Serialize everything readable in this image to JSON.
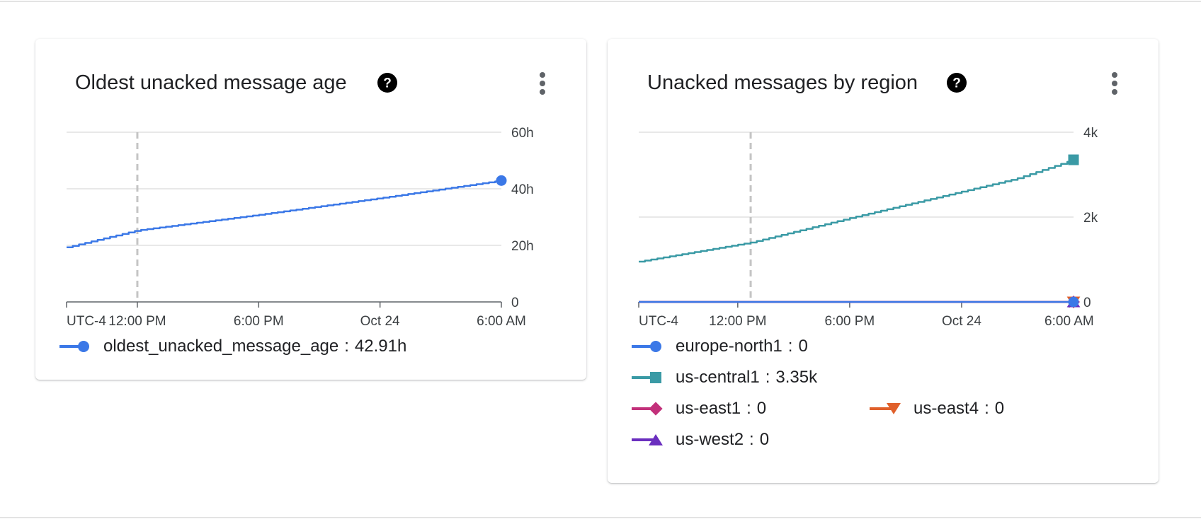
{
  "charts": [
    {
      "title": "Oldest unacked message age",
      "help_icon": "help-circle-icon",
      "menu_icon": "more-vert-icon",
      "legend": [
        {
          "name": "oldest_unacked_message_age",
          "value": "42.91h",
          "color": "#3b78e7",
          "marker": "circle"
        }
      ]
    },
    {
      "title": "Unacked messages by region",
      "help_icon": "help-circle-icon",
      "menu_icon": "more-vert-icon",
      "legend": [
        {
          "name": "europe-north1",
          "value": "0",
          "color": "#3b78e7",
          "marker": "circle"
        },
        {
          "name": "us-central1",
          "value": "3.35k",
          "color": "#3a9aa5",
          "marker": "square"
        },
        {
          "name": "us-east1",
          "value": "0",
          "color": "#c2307a",
          "marker": "diamond"
        },
        {
          "name": "us-east4",
          "value": "0",
          "color": "#e0602b",
          "marker": "triangle-down"
        },
        {
          "name": "us-west2",
          "value": "0",
          "color": "#6b2fbf",
          "marker": "triangle-up"
        }
      ]
    }
  ],
  "chart_data": [
    {
      "type": "line",
      "title": "Oldest unacked message age",
      "xlabel": "",
      "ylabel": "",
      "x_tick_labels": [
        "UTC-4",
        "12:00 PM",
        "6:00 PM",
        "Oct 24",
        "6:00 AM"
      ],
      "x_ticks": [
        0,
        3.5,
        9.5,
        15.5,
        21.5
      ],
      "x_range": [
        0,
        21.5
      ],
      "x_reference_line": 3.5,
      "y_tick_labels": [
        "0",
        "20h",
        "40h",
        "60h"
      ],
      "y_ticks": [
        0,
        20,
        40,
        60
      ],
      "ylim": [
        0,
        60
      ],
      "grid": true,
      "legend_position": "bottom",
      "series": [
        {
          "name": "oldest_unacked_message_age",
          "color": "#3b78e7",
          "marker": "circle",
          "x": [
            0,
            3.5,
            9.5,
            15.5,
            21.5
          ],
          "y": [
            19.3,
            25.3,
            30.8,
            36.7,
            42.91
          ]
        }
      ]
    },
    {
      "type": "line",
      "title": "Unacked messages by region",
      "xlabel": "",
      "ylabel": "",
      "x_tick_labels": [
        "UTC-4",
        "12:00 PM",
        "6:00 PM",
        "Oct 24",
        "6:00 AM"
      ],
      "x_ticks": [
        0,
        4.6,
        9.8,
        15.0,
        20.0
      ],
      "x_range": [
        0,
        20.2
      ],
      "x_reference_line": 5.2,
      "y_tick_labels": [
        "0",
        "2k",
        "4k"
      ],
      "y_ticks": [
        0,
        2000,
        4000
      ],
      "ylim": [
        0,
        4000
      ],
      "grid": true,
      "legend_position": "bottom",
      "series": [
        {
          "name": "europe-north1",
          "color": "#3b78e7",
          "marker": "circle",
          "x": [
            0,
            20.2
          ],
          "y": [
            0,
            0
          ]
        },
        {
          "name": "us-central1",
          "color": "#3a9aa5",
          "marker": "square",
          "x": [
            0,
            5.2,
            10,
            15,
            17.5,
            20.2
          ],
          "y": [
            950,
            1400,
            2000,
            2600,
            2900,
            3350
          ]
        },
        {
          "name": "us-east1",
          "color": "#c2307a",
          "marker": "diamond",
          "x": [
            0,
            20.2
          ],
          "y": [
            0,
            0
          ]
        },
        {
          "name": "us-east4",
          "color": "#e0602b",
          "marker": "triangle-down",
          "x": [
            0,
            20.2
          ],
          "y": [
            0,
            0
          ]
        },
        {
          "name": "us-west2",
          "color": "#6b2fbf",
          "marker": "triangle-up",
          "x": [
            0,
            20.2
          ],
          "y": [
            0,
            0
          ]
        }
      ]
    }
  ]
}
